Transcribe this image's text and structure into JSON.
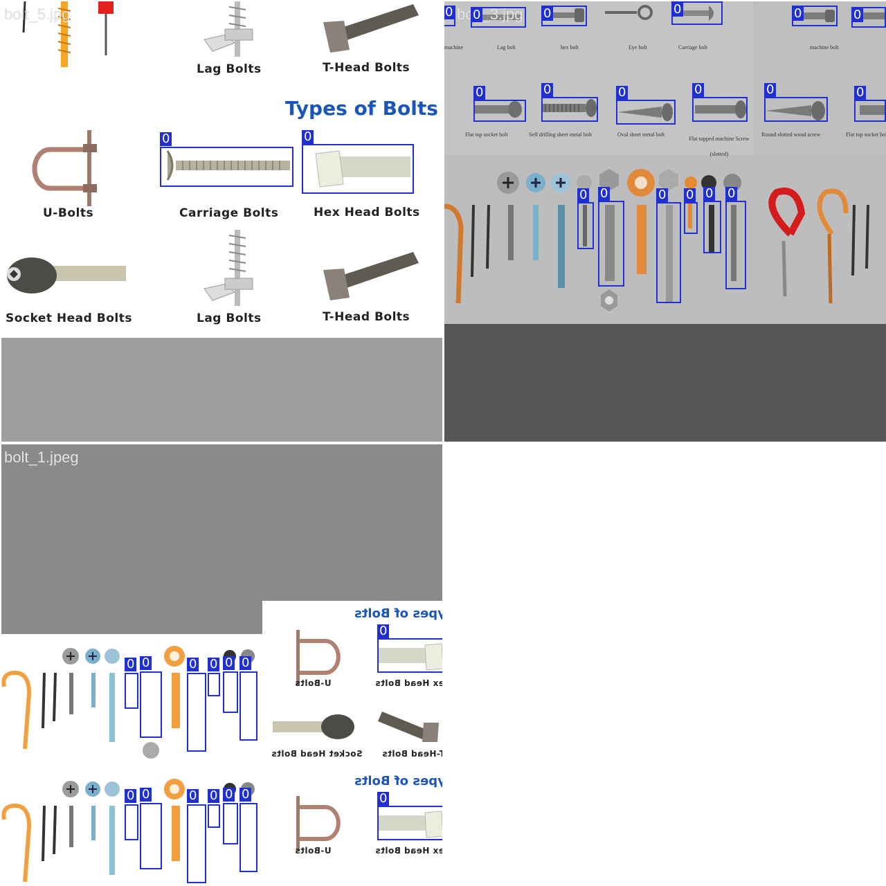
{
  "tiles": {
    "top_left": {
      "filename": "bolt_5.jpg",
      "heading": "Types of Bolts",
      "captions": [
        "Lag Bolts",
        "T-Head Bolts",
        "U-Bolts",
        "Carriage Bolts",
        "Hex Head Bolts",
        "Socket Head Bolts",
        "Lag Bolts",
        "T-Head Bolts"
      ]
    },
    "top_right": {
      "filename": "bolt_3.jpg",
      "row1_captions": [
        "machine",
        "Lag bolt",
        "hex bolt",
        "Eye bolt",
        "Carriage bolt",
        "machine bolt"
      ],
      "row2_captions": [
        "Flat top socket bolt",
        "Self drilling sheet metal bolt",
        "Oval sheet metal bolt",
        "Flat topped machine Screw (slotted)",
        "Round slotted wood screw",
        "Flat top socket bolt"
      ]
    },
    "bottom_left": {
      "filename": "bolt_1.jpeg",
      "mirrored_heading": "Types of Bolts",
      "mirrored_captions": [
        "U-Bolts",
        "Hex Head Bolts",
        "Socket Head Bolts",
        "T-Head Bolts",
        "U-Bolts",
        "Hex Head Bolts"
      ]
    }
  },
  "detection_label": "0",
  "colors": {
    "box": "#1f2fd0",
    "heading": "#1a56b8",
    "pad_gray": "#9e9e9e",
    "pad_dark": "#555555"
  }
}
